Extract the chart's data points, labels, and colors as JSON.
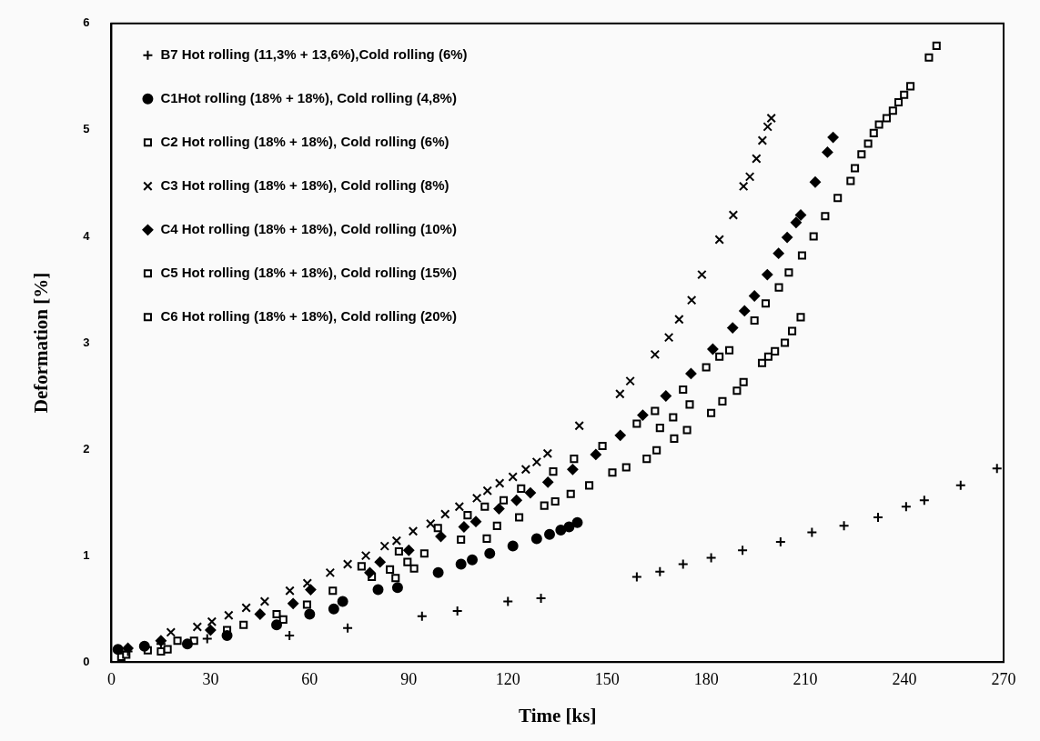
{
  "chart_data": {
    "type": "scatter",
    "xlabel": "Time [ks]",
    "ylabel": "Deformation [%]",
    "xlim": [
      0,
      270
    ],
    "xticks": [
      0,
      30,
      60,
      90,
      120,
      150,
      180,
      210,
      240,
      270
    ],
    "ylim": [
      0,
      6
    ],
    "yticks": [
      0,
      1,
      2,
      3,
      4,
      5,
      6
    ],
    "grid": false,
    "legend": "top left",
    "series": [
      {
        "name": "B7 Hot rolling (11,3% + 13,6%),Cold rolling (6%)",
        "color": "#000000",
        "marker": "cross",
        "x": [
          5,
          15,
          29,
          53.9,
          71.5,
          94,
          104.7,
          120,
          130,
          159,
          166,
          173,
          181.5,
          191,
          202.5,
          212,
          221.7,
          232,
          240.5,
          246,
          257,
          268
        ],
        "values": [
          0.1,
          0.17,
          0.22,
          0.25,
          0.32,
          0.43,
          0.48,
          0.57,
          0.6,
          0.8,
          0.85,
          0.92,
          0.98,
          1.05,
          1.13,
          1.22,
          1.28,
          1.36,
          1.46,
          1.52,
          1.66,
          1.82
        ]
      },
      {
        "name": "C1Hot rolling (18% + 18%), Cold rolling (4,8%)",
        "color": "#000000",
        "marker": "circle",
        "x": [
          2,
          10,
          23,
          35,
          50,
          60,
          67.3,
          70,
          80.7,
          86.6,
          98.9,
          105.8,
          109.2,
          114.5,
          121.5,
          128.7,
          132.6,
          136,
          138.5,
          141
        ],
        "values": [
          0.12,
          0.15,
          0.17,
          0.25,
          0.35,
          0.45,
          0.5,
          0.57,
          0.68,
          0.7,
          0.84,
          0.92,
          0.96,
          1.02,
          1.09,
          1.16,
          1.2,
          1.24,
          1.27,
          1.31
        ]
      },
      {
        "name": "C2 Hot rolling (18% + 18%), Cold rolling (6%)",
        "color": "#000000",
        "marker": "square",
        "x": [
          4.5,
          11,
          17,
          86,
          91.6,
          113.6,
          131,
          139,
          162,
          166,
          170,
          175,
          216,
          219.8,
          223.7,
          225,
          227,
          229,
          230.7,
          232.3,
          234.6,
          236.5,
          238.2,
          239.9,
          241.8,
          247.4,
          249.7
        ],
        "values": [
          0.07,
          0.11,
          0.12,
          0.79,
          0.88,
          1.16,
          1.47,
          1.58,
          1.91,
          2.2,
          2.3,
          2.42,
          4.19,
          4.36,
          4.52,
          4.64,
          4.77,
          4.87,
          4.97,
          5.05,
          5.11,
          5.18,
          5.26,
          5.33,
          5.41,
          5.68,
          5.79
        ]
      },
      {
        "name": "C3 Hot rolling (18% + 18%), Cold rolling (8%)",
        "color": "#000000",
        "marker": "x",
        "x": [
          18,
          26,
          30.4,
          35.5,
          40.8,
          46.4,
          54,
          59.3,
          66.2,
          71.5,
          77,
          82.7,
          86.3,
          91.3,
          96.6,
          101,
          105.3,
          110.6,
          113.8,
          117.5,
          121.5,
          125.4,
          128.7,
          132,
          141.6,
          153.9,
          157,
          164.5,
          168.7,
          171.8,
          175.6,
          178.7,
          184,
          188.2,
          191.3,
          193.2,
          195.2,
          197,
          198.6,
          199.7
        ],
        "values": [
          0.28,
          0.33,
          0.38,
          0.44,
          0.51,
          0.57,
          0.67,
          0.74,
          0.84,
          0.92,
          1.0,
          1.09,
          1.14,
          1.23,
          1.3,
          1.39,
          1.46,
          1.54,
          1.61,
          1.68,
          1.74,
          1.81,
          1.88,
          1.96,
          2.22,
          2.52,
          2.64,
          2.89,
          3.05,
          3.22,
          3.4,
          3.64,
          3.97,
          4.2,
          4.47,
          4.56,
          4.73,
          4.9,
          5.03,
          5.11
        ]
      },
      {
        "name": "C4 Hot rolling (18% + 18%), Cold rolling (10%)",
        "color": "#000000",
        "marker": "diamond",
        "x": [
          5,
          15,
          30,
          45,
          55,
          60.3,
          78.2,
          81.3,
          90,
          99.7,
          106.7,
          110.3,
          117.3,
          122.6,
          126.8,
          132.1,
          139.6,
          146.6,
          154,
          160.8,
          167.8,
          175.4,
          182,
          188,
          191.6,
          194.6,
          198.5,
          201.9,
          204.5,
          207.2,
          208.6,
          213,
          216.7,
          218.4
        ],
        "values": [
          0.13,
          0.2,
          0.3,
          0.45,
          0.55,
          0.68,
          0.84,
          0.94,
          1.05,
          1.18,
          1.27,
          1.32,
          1.44,
          1.52,
          1.59,
          1.69,
          1.81,
          1.95,
          2.13,
          2.32,
          2.5,
          2.71,
          2.94,
          3.14,
          3.3,
          3.44,
          3.64,
          3.84,
          3.99,
          4.13,
          4.2,
          4.51,
          4.79,
          4.93
        ]
      },
      {
        "name": "C5 Hot rolling (18% + 18%), Cold rolling (15%)",
        "color": "#000000",
        "marker": "square",
        "x": [
          20,
          35,
          52,
          75.7,
          87,
          98.8,
          107.8,
          113,
          118.7,
          124,
          133.7,
          140,
          148.6,
          159,
          164.5,
          173,
          180,
          184,
          187,
          194.6,
          198,
          202,
          205,
          209,
          212.5
        ],
        "values": [
          0.2,
          0.3,
          0.4,
          0.9,
          1.04,
          1.26,
          1.38,
          1.46,
          1.52,
          1.63,
          1.79,
          1.91,
          2.03,
          2.24,
          2.36,
          2.56,
          2.77,
          2.87,
          2.93,
          3.21,
          3.37,
          3.52,
          3.66,
          3.82,
          4.0
        ]
      },
      {
        "name": "C6 Hot rolling (18% + 18%), Cold rolling (20%)",
        "color": "#000000",
        "marker": "square",
        "x": [
          3,
          15,
          25,
          40,
          50,
          59.2,
          67,
          78.8,
          84.3,
          89.6,
          94.7,
          105.8,
          116.7,
          123.4,
          134.3,
          144.6,
          151.6,
          155.8,
          165,
          170.3,
          174.2,
          181.5,
          184.9,
          189.3,
          191.3,
          196.9,
          198.8,
          200.8,
          203.8,
          206,
          208.6
        ],
        "values": [
          0.05,
          0.1,
          0.2,
          0.35,
          0.45,
          0.54,
          0.67,
          0.8,
          0.87,
          0.94,
          1.02,
          1.15,
          1.28,
          1.36,
          1.51,
          1.66,
          1.78,
          1.83,
          1.99,
          2.1,
          2.18,
          2.34,
          2.45,
          2.55,
          2.63,
          2.81,
          2.87,
          2.92,
          3.0,
          3.11,
          3.24
        ]
      }
    ]
  }
}
